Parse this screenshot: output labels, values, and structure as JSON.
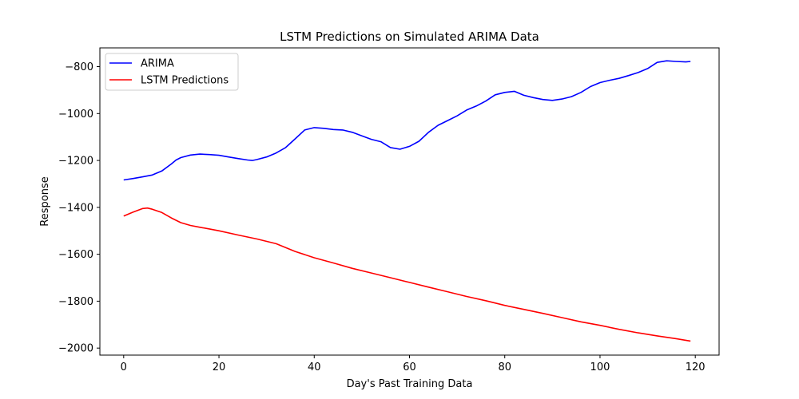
{
  "chart_data": {
    "type": "line",
    "title": "LSTM Predictions on Simulated ARIMA Data",
    "xlabel": "Day's Past Training Data",
    "ylabel": "Response",
    "xlim": [
      -5,
      125
    ],
    "ylim": [
      -2030,
      -720
    ],
    "xticks": [
      0,
      20,
      40,
      60,
      80,
      100,
      120
    ],
    "yticks": [
      -2000,
      -1800,
      -1600,
      -1400,
      -1200,
      -1000,
      -800
    ],
    "grid": false,
    "legend_placement": "top-left",
    "series": [
      {
        "name": "ARIMA",
        "color": "#0000ff",
        "points": [
          [
            0,
            -1283
          ],
          [
            2,
            -1277
          ],
          [
            4,
            -1270
          ],
          [
            6,
            -1262
          ],
          [
            8,
            -1245
          ],
          [
            10,
            -1215
          ],
          [
            11,
            -1198
          ],
          [
            12,
            -1188
          ],
          [
            14,
            -1177
          ],
          [
            16,
            -1173
          ],
          [
            18,
            -1175
          ],
          [
            20,
            -1178
          ],
          [
            22,
            -1185
          ],
          [
            24,
            -1192
          ],
          [
            26,
            -1198
          ],
          [
            27,
            -1200
          ],
          [
            28,
            -1196
          ],
          [
            30,
            -1185
          ],
          [
            32,
            -1168
          ],
          [
            34,
            -1145
          ],
          [
            36,
            -1108
          ],
          [
            38,
            -1070
          ],
          [
            40,
            -1060
          ],
          [
            42,
            -1063
          ],
          [
            44,
            -1068
          ],
          [
            46,
            -1070
          ],
          [
            48,
            -1080
          ],
          [
            50,
            -1095
          ],
          [
            52,
            -1110
          ],
          [
            54,
            -1120
          ],
          [
            56,
            -1145
          ],
          [
            58,
            -1152
          ],
          [
            60,
            -1140
          ],
          [
            62,
            -1118
          ],
          [
            64,
            -1080
          ],
          [
            66,
            -1050
          ],
          [
            68,
            -1030
          ],
          [
            70,
            -1010
          ],
          [
            72,
            -985
          ],
          [
            74,
            -968
          ],
          [
            76,
            -947
          ],
          [
            78,
            -920
          ],
          [
            80,
            -910
          ],
          [
            82,
            -905
          ],
          [
            84,
            -922
          ],
          [
            86,
            -932
          ],
          [
            88,
            -940
          ],
          [
            90,
            -944
          ],
          [
            92,
            -938
          ],
          [
            94,
            -928
          ],
          [
            96,
            -910
          ],
          [
            98,
            -885
          ],
          [
            100,
            -868
          ],
          [
            102,
            -858
          ],
          [
            104,
            -850
          ],
          [
            106,
            -838
          ],
          [
            108,
            -825
          ],
          [
            110,
            -808
          ],
          [
            112,
            -782
          ],
          [
            114,
            -775
          ],
          [
            116,
            -778
          ],
          [
            118,
            -780
          ],
          [
            119,
            -778
          ]
        ]
      },
      {
        "name": "LSTM Predictions",
        "color": "#ff0000",
        "points": [
          [
            0,
            -1437
          ],
          [
            2,
            -1420
          ],
          [
            4,
            -1405
          ],
          [
            5,
            -1403
          ],
          [
            6,
            -1408
          ],
          [
            8,
            -1422
          ],
          [
            10,
            -1445
          ],
          [
            12,
            -1465
          ],
          [
            14,
            -1477
          ],
          [
            16,
            -1485
          ],
          [
            18,
            -1492
          ],
          [
            20,
            -1500
          ],
          [
            24,
            -1518
          ],
          [
            28,
            -1535
          ],
          [
            32,
            -1555
          ],
          [
            36,
            -1588
          ],
          [
            40,
            -1615
          ],
          [
            44,
            -1637
          ],
          [
            48,
            -1660
          ],
          [
            52,
            -1680
          ],
          [
            56,
            -1700
          ],
          [
            60,
            -1720
          ],
          [
            64,
            -1740
          ],
          [
            68,
            -1760
          ],
          [
            72,
            -1780
          ],
          [
            76,
            -1798
          ],
          [
            80,
            -1818
          ],
          [
            84,
            -1835
          ],
          [
            88,
            -1852
          ],
          [
            92,
            -1870
          ],
          [
            96,
            -1888
          ],
          [
            100,
            -1903
          ],
          [
            104,
            -1920
          ],
          [
            108,
            -1935
          ],
          [
            112,
            -1948
          ],
          [
            116,
            -1960
          ],
          [
            119,
            -1970
          ]
        ]
      }
    ]
  }
}
